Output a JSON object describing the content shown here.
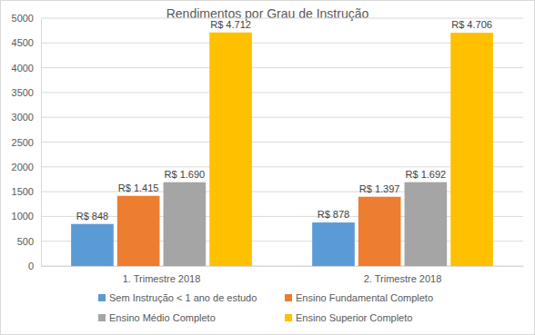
{
  "chart_data": {
    "type": "bar",
    "title": "Rendimentos por Grau de Instrução",
    "categories": [
      "1. Trimestre 2018",
      "2. Trimestre 2018"
    ],
    "series": [
      {
        "name": "Sem Instrução < 1 ano de estudo",
        "color": "#5b9bd5",
        "values": [
          848,
          878
        ],
        "value_labels": [
          "R$ 848",
          "R$ 878"
        ]
      },
      {
        "name": "Ensino Fundamental Completo",
        "color": "#ed7d31",
        "values": [
          1415,
          1397
        ],
        "value_labels": [
          "R$ 1.415",
          "R$ 1.397"
        ]
      },
      {
        "name": "Ensino Médio Completo",
        "color": "#a5a5a5",
        "values": [
          1690,
          1692
        ],
        "value_labels": [
          "R$ 1.690",
          "R$ 1.692"
        ]
      },
      {
        "name": "Ensino Superior Completo",
        "color": "#ffc000",
        "values": [
          4712,
          4706
        ],
        "value_labels": [
          "R$ 4.712",
          "R$ 4.706"
        ]
      }
    ],
    "ylim": [
      0,
      5000
    ],
    "yticks": [
      0,
      500,
      1000,
      1500,
      2000,
      2500,
      3000,
      3500,
      4000,
      4500,
      5000
    ],
    "grid": true,
    "legend": "bottom",
    "data_labels": true
  }
}
